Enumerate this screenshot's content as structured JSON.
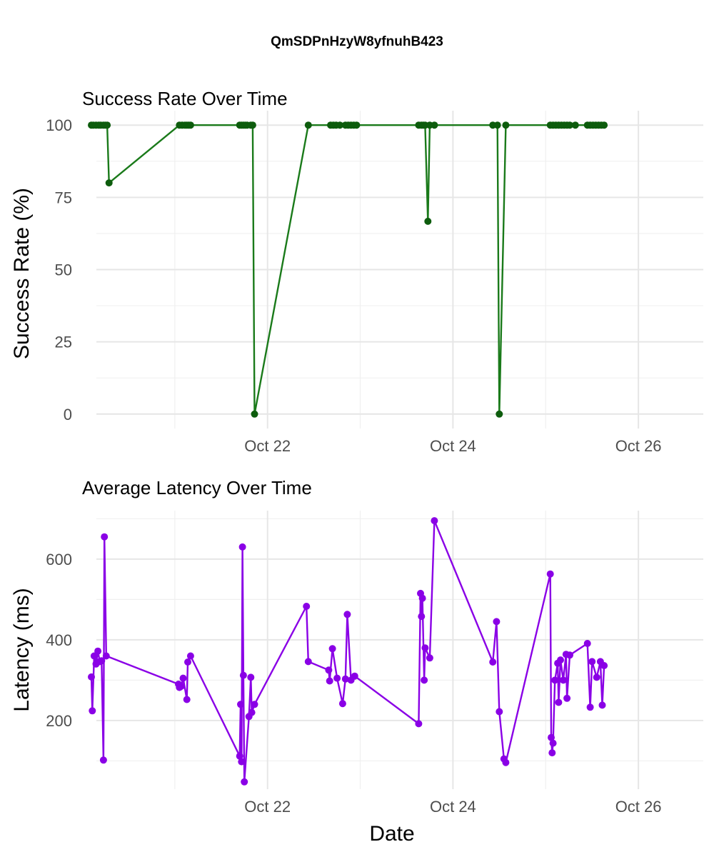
{
  "figure": {
    "title": "QmSDPnHzyW8yfnuhB423",
    "xlabel": "Date"
  },
  "colors": {
    "success": "#1a7a1a",
    "success_point": "#0d5c0d",
    "latency": "#8a00e6"
  },
  "chart_data": [
    {
      "type": "line",
      "title": "Success Rate Over Time",
      "xlabel": "",
      "ylabel": "Success Rate (%)",
      "x_unit": "days since Oct 21 00:00",
      "xlim": [
        -1.0,
        5.7
      ],
      "ylim": [
        -5,
        105
      ],
      "xticks": [
        {
          "x": 1,
          "label": "Oct 22"
        },
        {
          "x": 3,
          "label": "Oct 24"
        },
        {
          "x": 5,
          "label": "Oct 26"
        }
      ],
      "yticks": [
        0,
        25,
        50,
        75,
        100
      ],
      "grid": true,
      "series": [
        {
          "name": "",
          "x": [
            -0.9,
            -0.88,
            -0.85,
            -0.82,
            -0.8,
            -0.77,
            -0.75,
            -0.73,
            -0.71,
            0.05,
            0.08,
            0.11,
            0.13,
            0.15,
            0.17,
            0.7,
            0.72,
            0.74,
            0.76,
            0.78,
            0.82,
            0.84,
            0.86,
            1.44,
            1.68,
            1.71,
            1.74,
            1.78,
            1.84,
            1.87,
            1.9,
            1.93,
            1.96,
            2.63,
            2.66,
            2.68,
            2.7,
            2.73,
            2.75,
            2.8,
            3.43,
            3.48,
            3.5,
            3.57,
            4.05,
            4.08,
            4.11,
            4.14,
            4.17,
            4.2,
            4.23,
            4.26,
            4.32,
            4.45,
            4.48,
            4.51,
            4.54,
            4.57,
            4.6,
            4.63
          ],
          "y": [
            100,
            100,
            100,
            100,
            100,
            100,
            100,
            100,
            80,
            100,
            100,
            100,
            100,
            100,
            100,
            100,
            100,
            100,
            100,
            100,
            100,
            100,
            0,
            100,
            100,
            100,
            100,
            100,
            100,
            100,
            100,
            100,
            100,
            100,
            100,
            100,
            100,
            66.7,
            100,
            100,
            100,
            100,
            0,
            100,
            100,
            100,
            100,
            100,
            100,
            100,
            100,
            100,
            100,
            100,
            100,
            100,
            100,
            100,
            100,
            100
          ],
          "color": "#1a7a1a"
        }
      ]
    },
    {
      "type": "line",
      "title": "Average Latency Over Time",
      "xlabel": "Date",
      "ylabel": "Latency (ms)",
      "x_unit": "days since Oct 21 00:00",
      "xlim": [
        -1.0,
        5.7
      ],
      "ylim": [
        30,
        720
      ],
      "xticks": [
        {
          "x": 1,
          "label": "Oct 22"
        },
        {
          "x": 3,
          "label": "Oct 24"
        },
        {
          "x": 5,
          "label": "Oct 26"
        }
      ],
      "yticks": [
        200,
        400,
        600
      ],
      "grid": true,
      "series": [
        {
          "name": "",
          "x": [
            -0.9,
            -0.89,
            -0.87,
            -0.85,
            -0.83,
            -0.81,
            -0.79,
            -0.77,
            -0.76,
            -0.74,
            0.04,
            0.05,
            0.07,
            0.09,
            0.13,
            0.14,
            0.17,
            0.7,
            0.71,
            0.72,
            0.73,
            0.74,
            0.75,
            0.8,
            0.82,
            0.83,
            0.86,
            1.42,
            1.44,
            1.66,
            1.67,
            1.7,
            1.75,
            1.81,
            1.84,
            1.86,
            1.9,
            1.94,
            2.63,
            2.65,
            2.66,
            2.67,
            2.69,
            2.7,
            2.75,
            2.8,
            3.43,
            3.47,
            3.5,
            3.55,
            3.57,
            4.05,
            4.06,
            4.07,
            4.08,
            4.1,
            4.13,
            4.14,
            4.16,
            4.19,
            4.22,
            4.23,
            4.26,
            4.45,
            4.48,
            4.5,
            4.55,
            4.59,
            4.61,
            4.63
          ],
          "y": [
            308,
            224,
            360,
            340,
            372,
            346,
            348,
            102,
            655,
            360,
            290,
            282,
            285,
            305,
            252,
            345,
            360,
            112,
            240,
            98,
            630,
            312,
            48,
            210,
            307,
            220,
            240,
            483,
            346,
            325,
            298,
            378,
            305,
            242,
            303,
            463,
            300,
            310,
            192,
            515,
            458,
            503,
            300,
            380,
            355,
            695,
            345,
            445,
            222,
            105,
            96,
            563,
            158,
            120,
            144,
            300,
            342,
            245,
            350,
            300,
            364,
            255,
            362,
            391,
            233,
            346,
            307,
            346,
            238,
            336
          ],
          "color": "#8a00e6"
        }
      ]
    }
  ]
}
